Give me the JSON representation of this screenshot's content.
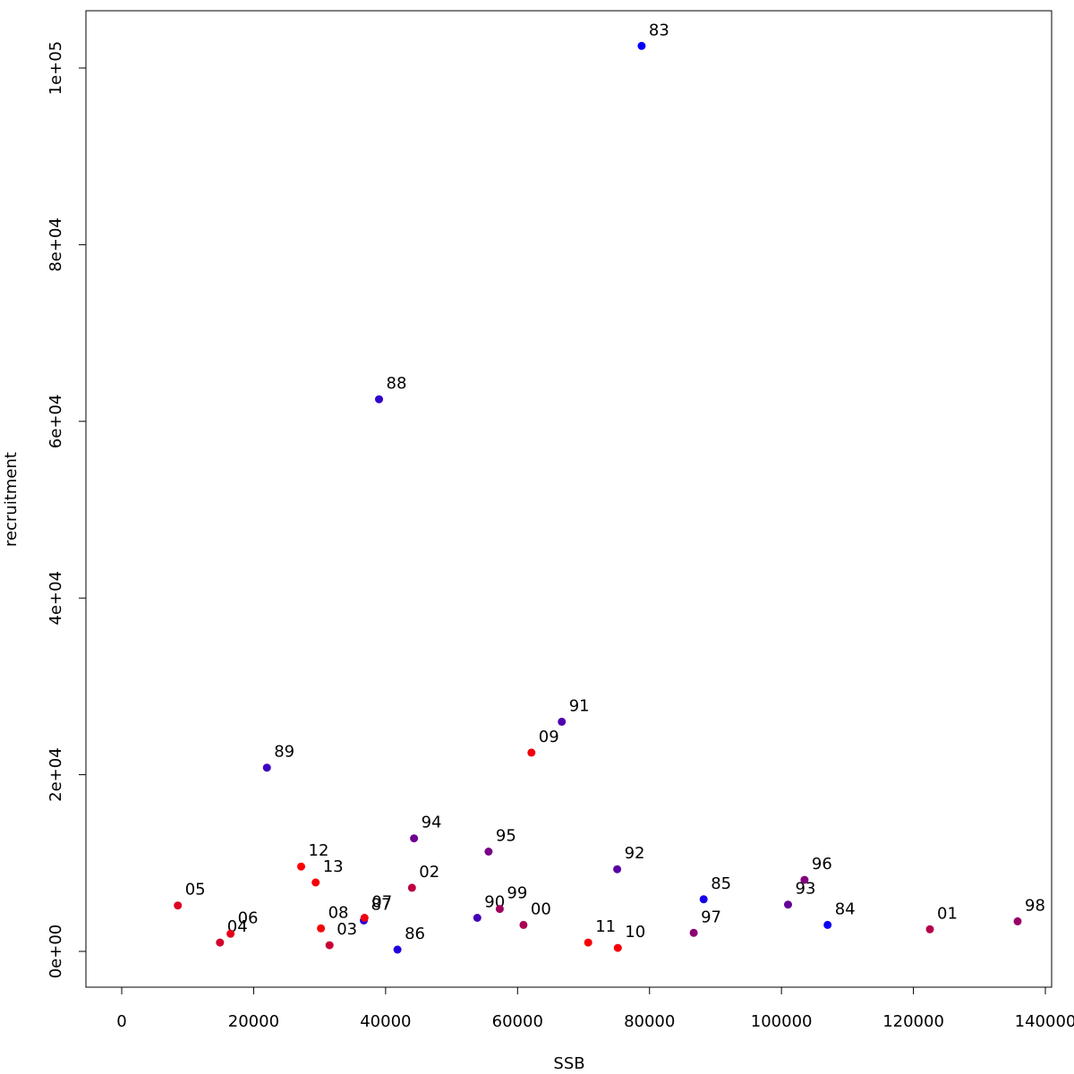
{
  "chart_data": {
    "type": "scatter",
    "title": "",
    "xlabel": "SSB",
    "ylabel": "recruitment",
    "xlim": [
      -5000,
      141000
    ],
    "ylim": [
      -4000,
      107000
    ],
    "x_ticks": [
      0,
      20000,
      40000,
      60000,
      80000,
      100000,
      120000,
      140000
    ],
    "x_tick_labels": [
      "0",
      "20000",
      "40000",
      "60000",
      "80000",
      "100000",
      "120000",
      "140000"
    ],
    "y_ticks": [
      0,
      20000,
      40000,
      60000,
      80000,
      100000
    ],
    "y_tick_labels": [
      "0e+00",
      "2e+04",
      "4e+04",
      "6e+04",
      "8e+04",
      "1e+05"
    ],
    "grid": false,
    "legend": "none",
    "points": [
      {
        "label": "83",
        "x": 78800,
        "y": 102500,
        "color": "#0000ff"
      },
      {
        "label": "84",
        "x": 107000,
        "y": 3000,
        "color": "#0a00f5"
      },
      {
        "label": "85",
        "x": 88200,
        "y": 5900,
        "color": "#1400eb"
      },
      {
        "label": "86",
        "x": 41800,
        "y": 200,
        "color": "#1e00e1"
      },
      {
        "label": "87",
        "x": 36700,
        "y": 3500,
        "color": "#2800d7"
      },
      {
        "label": "88",
        "x": 39000,
        "y": 62500,
        "color": "#3200cd"
      },
      {
        "label": "89",
        "x": 22000,
        "y": 20800,
        "color": "#3c00c3"
      },
      {
        "label": "90",
        "x": 53900,
        "y": 3800,
        "color": "#4600b9"
      },
      {
        "label": "91",
        "x": 66700,
        "y": 26000,
        "color": "#5000af"
      },
      {
        "label": "92",
        "x": 75100,
        "y": 9300,
        "color": "#5a00a5"
      },
      {
        "label": "93",
        "x": 101000,
        "y": 5300,
        "color": "#64009b"
      },
      {
        "label": "94",
        "x": 44300,
        "y": 12800,
        "color": "#6e0091"
      },
      {
        "label": "95",
        "x": 55600,
        "y": 11300,
        "color": "#780087"
      },
      {
        "label": "96",
        "x": 103500,
        "y": 8100,
        "color": "#82007d"
      },
      {
        "label": "97",
        "x": 86700,
        "y": 2100,
        "color": "#8c0073"
      },
      {
        "label": "98",
        "x": 135800,
        "y": 3400,
        "color": "#960069"
      },
      {
        "label": "99",
        "x": 57300,
        "y": 4800,
        "color": "#a0005f"
      },
      {
        "label": "00",
        "x": 60900,
        "y": 3000,
        "color": "#aa0055"
      },
      {
        "label": "01",
        "x": 122500,
        "y": 2500,
        "color": "#b4004b"
      },
      {
        "label": "02",
        "x": 44000,
        "y": 7200,
        "color": "#be0041"
      },
      {
        "label": "03",
        "x": 31500,
        "y": 700,
        "color": "#c80037"
      },
      {
        "label": "04",
        "x": 14900,
        "y": 1000,
        "color": "#d2002d"
      },
      {
        "label": "05",
        "x": 8500,
        "y": 5200,
        "color": "#dc0023"
      },
      {
        "label": "06",
        "x": 16500,
        "y": 2000,
        "color": "#e60019"
      },
      {
        "label": "07",
        "x": 36800,
        "y": 3800,
        "color": "#f0000f"
      },
      {
        "label": "08",
        "x": 30200,
        "y": 2600,
        "color": "#fa0005"
      },
      {
        "label": "09",
        "x": 62100,
        "y": 22500,
        "color": "#f00008"
      },
      {
        "label": "10",
        "x": 75200,
        "y": 400,
        "color": "#f5000a"
      },
      {
        "label": "11",
        "x": 70700,
        "y": 1000,
        "color": "#fa0005"
      },
      {
        "label": "12",
        "x": 27200,
        "y": 9600,
        "color": "#ff0000"
      },
      {
        "label": "13",
        "x": 29400,
        "y": 7800,
        "color": "#f50008"
      }
    ]
  }
}
